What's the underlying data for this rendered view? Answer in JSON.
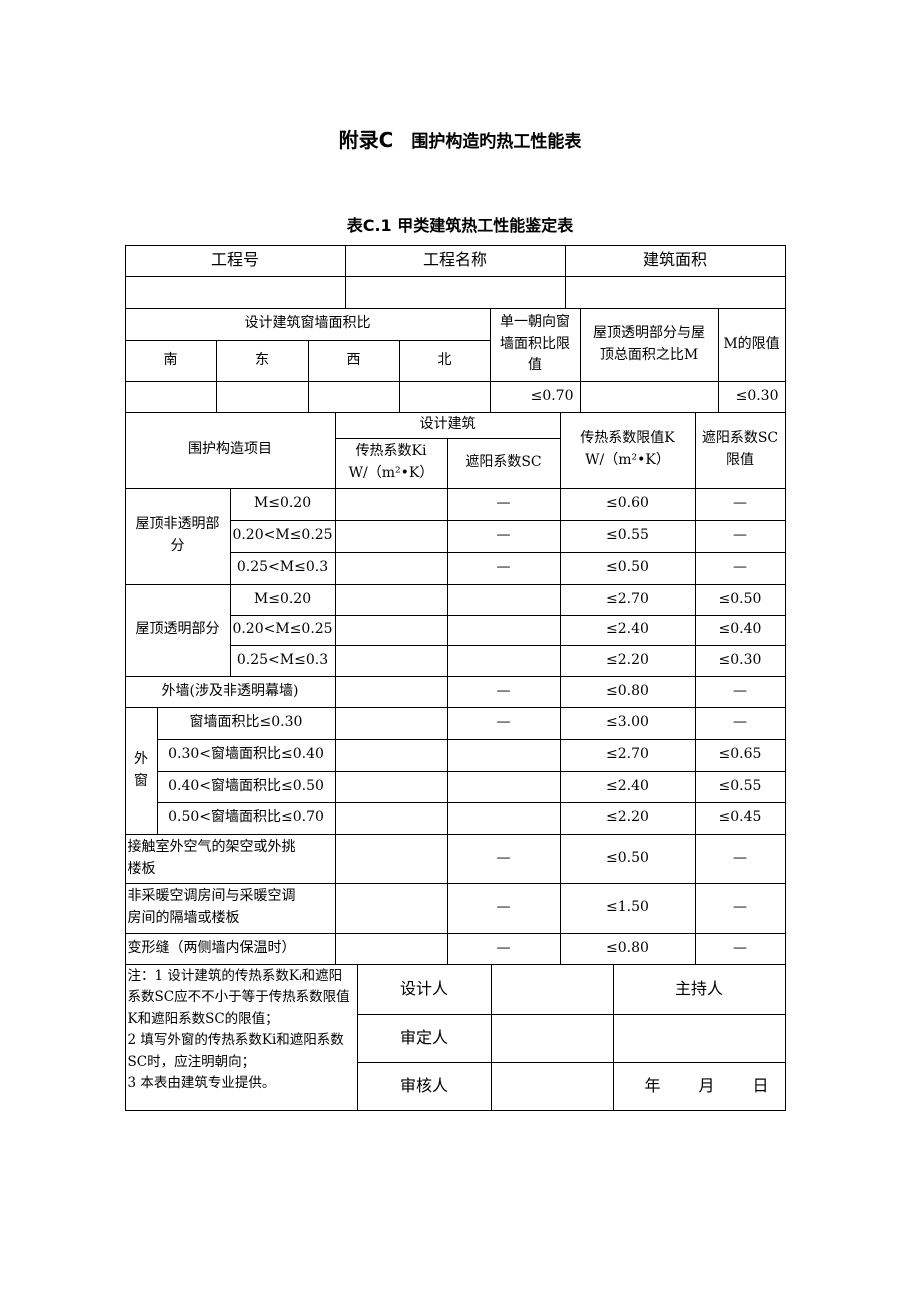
{
  "title": {
    "prefix": "附录C",
    "text": "围护构造旳热工性能表"
  },
  "table_title": "表C.1 甲类建筑热工性能鉴定表",
  "header": {
    "project_no": "工程号",
    "project_name": "工程名称",
    "area": "建筑面积"
  },
  "window_ratio": {
    "label": "设计建筑窗墙面积比",
    "directions": [
      "南",
      "东",
      "西",
      "北"
    ],
    "single_label": "单一朝向窗\n墙面积比限\n值",
    "roof_label": "屋顶透明部分与屋\n顶总面积之比M",
    "m_limit_label": "M的限值",
    "single_value": "≤0.70",
    "m_value": "≤0.30"
  },
  "columns": {
    "item": "围护构造项目",
    "design": "设计建筑",
    "ki": "传热系数Ki\nW/（m²•K）",
    "sc": "遮阳系数SC",
    "k_limit": "传热系数限值K\nW/（m²•K）",
    "sc_limit": "遮阳系数SC\n限值"
  },
  "groups": {
    "roof_opaque": "屋顶非透明部\n分",
    "roof_trans": "屋顶透明部分",
    "window": "外\n窗"
  },
  "rows": [
    {
      "sub": "M≤0.20",
      "sc": "—",
      "k": "≤0.60",
      "scl": "—"
    },
    {
      "sub": "0.20<M≤0.25",
      "sc": "—",
      "k": "≤0.55",
      "scl": "—"
    },
    {
      "sub": "0.25<M≤0.3",
      "sc": "—",
      "k": "≤0.50",
      "scl": "—"
    },
    {
      "sub": "M≤0.20",
      "sc": "",
      "k": "≤2.70",
      "scl": "≤0.50"
    },
    {
      "sub": "0.20<M≤0.25",
      "sc": "",
      "k": "≤2.40",
      "scl": "≤0.40"
    },
    {
      "sub": "0.25<M≤0.3",
      "sc": "",
      "k": "≤2.20",
      "scl": "≤0.30"
    },
    {
      "sub": "外墙(涉及非透明幕墙)",
      "sc": "—",
      "k": "≤0.80",
      "scl": "—"
    },
    {
      "sub": "窗墙面积比≤0.30",
      "sc": "—",
      "k": "≤3.00",
      "scl": "—"
    },
    {
      "sub": "0.30<窗墙面积比≤0.40",
      "sc": "",
      "k": "≤2.70",
      "scl": "≤0.65"
    },
    {
      "sub": "0.40<窗墙面积比≤0.50",
      "sc": "",
      "k": "≤2.40",
      "scl": "≤0.55"
    },
    {
      "sub": "0.50<窗墙面积比≤0.70",
      "sc": "",
      "k": "≤2.20",
      "scl": "≤0.45"
    },
    {
      "sub": "接触室外空气的架空或外挑\n楼板",
      "sc": "—",
      "k": "≤0.50",
      "scl": "—"
    },
    {
      "sub": "非采暖空调房间与采暖空调\n房间的隔墙或楼板",
      "sc": "—",
      "k": "≤1.50",
      "scl": "—"
    },
    {
      "sub": "变形缝（两侧墙内保温时）",
      "sc": "—",
      "k": "≤0.80",
      "scl": "—"
    }
  ],
  "footer": {
    "note": "注：1 设计建筑的传热系数Kᵢ和遮阳系数SC应不不小于等于传热系数限值K和遮阳系数SC的限值；\n2 填写外窗的传热系数Ki和遮阳系数SC时，应注明朝向；\n3 本表由建筑专业提供。",
    "designer": "设计人",
    "host": "主持人",
    "approver": "审定人",
    "reviewer": "审核人",
    "year": "年",
    "month": "月",
    "day": "日"
  }
}
